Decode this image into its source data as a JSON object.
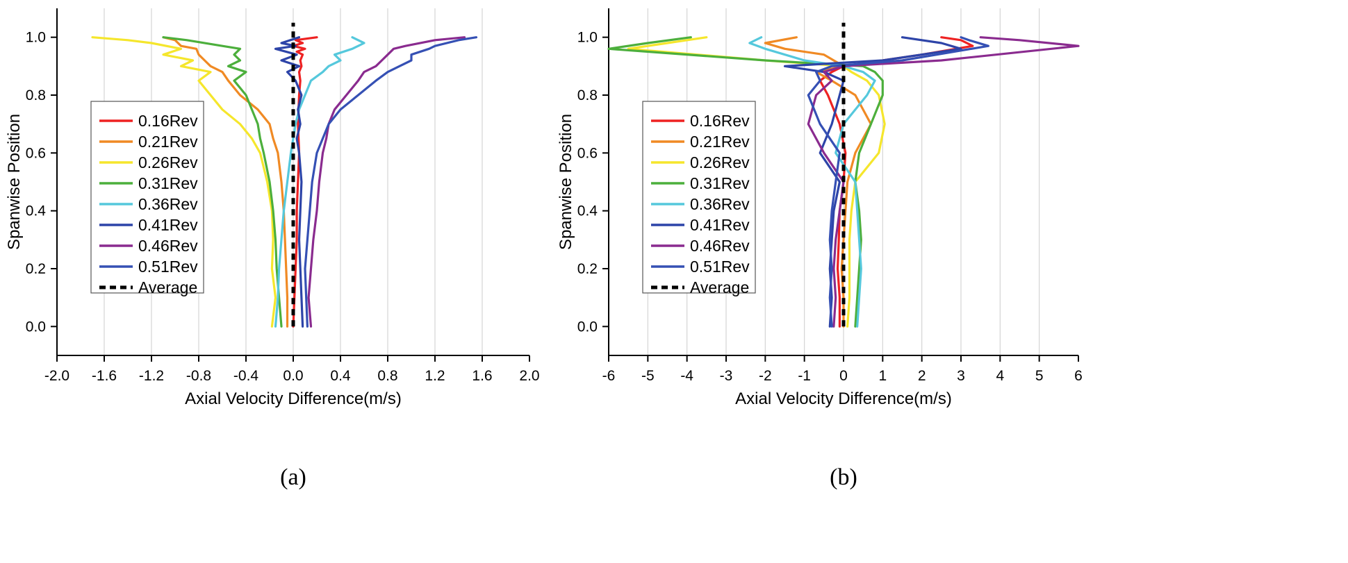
{
  "chart_data": [
    {
      "type": "line",
      "panel": "a",
      "caption": "(a)",
      "xlabel": "Axial Velocity Difference(m/s)",
      "ylabel": "Spanwise Position",
      "xlim": [
        -2.0,
        2.0
      ],
      "ylim": [
        -0.1,
        1.1
      ],
      "xticks": [
        -2.0,
        -1.6,
        -1.2,
        -0.8,
        -0.4,
        0.0,
        0.4,
        0.8,
        1.2,
        1.6,
        2.0
      ],
      "xtick_labels": [
        "-2.0",
        "-1.6",
        "-1.2",
        "-0.8",
        "-0.4",
        "0.0",
        "0.4",
        "0.8",
        "1.2",
        "1.6",
        "2.0"
      ],
      "yticks": [
        0.0,
        0.2,
        0.4,
        0.6,
        0.8,
        1.0
      ],
      "ytick_labels": [
        "0.0",
        "0.2",
        "0.4",
        "0.6",
        "0.8",
        "1.0"
      ],
      "grid": "vertical",
      "legend_position": "left",
      "series": [
        {
          "name": "0.16Rev",
          "color": "#ee2222",
          "dashed": false,
          "x": [
            0.0,
            0.01,
            0.02,
            0.03,
            0.03,
            0.04,
            0.05,
            0.04,
            0.05,
            0.06,
            0.05,
            0.07,
            0.06,
            0.08,
            0.03,
            0.1,
            0.0,
            0.08,
            0.02,
            0.2
          ],
          "y": [
            0.0,
            0.1,
            0.2,
            0.3,
            0.4,
            0.5,
            0.6,
            0.7,
            0.8,
            0.85,
            0.88,
            0.9,
            0.92,
            0.94,
            0.95,
            0.96,
            0.97,
            0.98,
            0.99,
            1.0
          ]
        },
        {
          "name": "0.21Rev",
          "color": "#f08a24",
          "dashed": false,
          "x": [
            -0.05,
            -0.05,
            -0.06,
            -0.07,
            -0.08,
            -0.1,
            -0.13,
            -0.17,
            -0.2,
            -0.3,
            -0.45,
            -0.55,
            -0.6,
            -0.7,
            -0.75,
            -0.8,
            -0.82,
            -0.95,
            -1.0,
            -1.1
          ],
          "y": [
            0.0,
            0.1,
            0.2,
            0.3,
            0.4,
            0.5,
            0.6,
            0.65,
            0.7,
            0.75,
            0.8,
            0.85,
            0.88,
            0.9,
            0.92,
            0.94,
            0.96,
            0.97,
            0.99,
            1.0
          ]
        },
        {
          "name": "0.26Rev",
          "color": "#f5e62c",
          "dashed": false,
          "x": [
            -0.18,
            -0.15,
            -0.18,
            -0.17,
            -0.18,
            -0.22,
            -0.28,
            -0.35,
            -0.45,
            -0.6,
            -0.7,
            -0.8,
            -0.7,
            -0.95,
            -0.85,
            -1.1,
            -0.95,
            -1.2,
            -1.4,
            -1.7
          ],
          "y": [
            0.0,
            0.1,
            0.2,
            0.3,
            0.4,
            0.5,
            0.6,
            0.65,
            0.7,
            0.75,
            0.8,
            0.85,
            0.88,
            0.9,
            0.92,
            0.94,
            0.96,
            0.98,
            0.99,
            1.0
          ]
        },
        {
          "name": "0.31Rev",
          "color": "#4caf3c",
          "dashed": false,
          "x": [
            -0.1,
            -0.12,
            -0.14,
            -0.15,
            -0.17,
            -0.2,
            -0.25,
            -0.28,
            -0.3,
            -0.35,
            -0.4,
            -0.5,
            -0.4,
            -0.55,
            -0.45,
            -0.5,
            -0.45,
            -0.6,
            -0.9,
            -1.1
          ],
          "y": [
            0.0,
            0.1,
            0.2,
            0.3,
            0.4,
            0.5,
            0.6,
            0.65,
            0.7,
            0.75,
            0.8,
            0.85,
            0.88,
            0.9,
            0.92,
            0.94,
            0.96,
            0.97,
            0.99,
            1.0
          ]
        },
        {
          "name": "0.36Rev",
          "color": "#55c8dc",
          "dashed": false,
          "x": [
            -0.15,
            -0.13,
            -0.12,
            -0.1,
            -0.08,
            -0.05,
            -0.02,
            0.0,
            0.02,
            0.05,
            0.1,
            0.15,
            0.25,
            0.3,
            0.4,
            0.35,
            0.5,
            0.55,
            0.6,
            0.5
          ],
          "y": [
            0.0,
            0.1,
            0.2,
            0.3,
            0.4,
            0.5,
            0.6,
            0.65,
            0.7,
            0.75,
            0.8,
            0.85,
            0.88,
            0.9,
            0.92,
            0.94,
            0.96,
            0.97,
            0.98,
            1.0
          ]
        },
        {
          "name": "0.41Rev",
          "color": "#2d44a8",
          "dashed": false,
          "x": [
            0.08,
            0.07,
            0.06,
            0.05,
            0.06,
            0.07,
            0.05,
            0.03,
            0.06,
            0.04,
            0.07,
            0.02,
            -0.05,
            0.05,
            -0.1,
            0.03,
            -0.15,
            0.02,
            -0.1,
            0.05
          ],
          "y": [
            0.0,
            0.1,
            0.2,
            0.3,
            0.4,
            0.5,
            0.6,
            0.65,
            0.7,
            0.75,
            0.8,
            0.85,
            0.88,
            0.9,
            0.92,
            0.94,
            0.96,
            0.97,
            0.98,
            1.0
          ]
        },
        {
          "name": "0.46Rev",
          "color": "#8a2b8f",
          "dashed": false,
          "x": [
            0.15,
            0.13,
            0.15,
            0.17,
            0.2,
            0.22,
            0.25,
            0.28,
            0.3,
            0.35,
            0.45,
            0.55,
            0.6,
            0.7,
            0.75,
            0.8,
            0.85,
            0.95,
            1.2,
            1.45
          ],
          "y": [
            0.0,
            0.1,
            0.2,
            0.3,
            0.4,
            0.5,
            0.6,
            0.65,
            0.7,
            0.75,
            0.8,
            0.85,
            0.88,
            0.9,
            0.92,
            0.94,
            0.96,
            0.97,
            0.99,
            1.0
          ]
        },
        {
          "name": "0.51Rev",
          "color": "#3550b4",
          "dashed": false,
          "x": [
            0.12,
            0.11,
            0.1,
            0.12,
            0.14,
            0.16,
            0.2,
            0.25,
            0.3,
            0.4,
            0.55,
            0.7,
            0.8,
            0.9,
            1.0,
            1.0,
            1.15,
            1.2,
            1.4,
            1.55
          ],
          "y": [
            0.0,
            0.1,
            0.2,
            0.3,
            0.4,
            0.5,
            0.6,
            0.65,
            0.7,
            0.75,
            0.8,
            0.85,
            0.88,
            0.9,
            0.92,
            0.94,
            0.96,
            0.97,
            0.99,
            1.0
          ]
        },
        {
          "name": "Average",
          "color": "#000000",
          "dashed": true,
          "x": [
            0.0,
            0.0
          ],
          "y": [
            0.0,
            1.05
          ]
        }
      ]
    },
    {
      "type": "line",
      "panel": "b",
      "caption": "(b)",
      "xlabel": "Axial Velocity Difference(m/s)",
      "ylabel": "Spanwise Position",
      "xlim": [
        -6,
        6
      ],
      "ylim": [
        -0.1,
        1.1
      ],
      "xticks": [
        -6,
        -5,
        -4,
        -3,
        -2,
        -1,
        0,
        1,
        2,
        3,
        4,
        5,
        6
      ],
      "xtick_labels": [
        "-6",
        "-5",
        "-4",
        "-3",
        "-2",
        "-1",
        "0",
        "1",
        "2",
        "3",
        "4",
        "5",
        "6"
      ],
      "yticks": [
        0.0,
        0.2,
        0.4,
        0.6,
        0.8,
        1.0
      ],
      "ytick_labels": [
        "0.0",
        "0.2",
        "0.4",
        "0.6",
        "0.8",
        "1.0"
      ],
      "grid": "vertical",
      "legend_position": "left",
      "series": [
        {
          "name": "0.16Rev",
          "color": "#ee2222",
          "dashed": false,
          "x": [
            -0.1,
            -0.1,
            -0.15,
            -0.12,
            -0.1,
            0.0,
            0.05,
            -0.1,
            -0.4,
            -0.6,
            -0.3,
            0.0,
            2.0,
            3.3,
            3.0,
            2.5
          ],
          "y": [
            0.0,
            0.1,
            0.2,
            0.3,
            0.4,
            0.5,
            0.6,
            0.7,
            0.8,
            0.85,
            0.88,
            0.9,
            0.94,
            0.97,
            0.99,
            1.0
          ]
        },
        {
          "name": "0.21Rev",
          "color": "#f08a24",
          "dashed": false,
          "x": [
            0.0,
            0.0,
            -0.05,
            0.0,
            0.05,
            0.1,
            0.3,
            0.7,
            0.3,
            -0.3,
            -0.7,
            0.0,
            -0.5,
            -1.5,
            -2.0,
            -1.2
          ],
          "y": [
            0.0,
            0.1,
            0.2,
            0.3,
            0.4,
            0.5,
            0.6,
            0.7,
            0.8,
            0.85,
            0.88,
            0.9,
            0.94,
            0.96,
            0.98,
            1.0
          ]
        },
        {
          "name": "0.26Rev",
          "color": "#f5e62c",
          "dashed": false,
          "x": [
            0.1,
            0.15,
            0.15,
            0.15,
            0.2,
            0.3,
            0.9,
            1.05,
            0.9,
            0.6,
            0.2,
            0.0,
            -2.0,
            -5.5,
            -4.5,
            -3.5
          ],
          "y": [
            0.0,
            0.1,
            0.2,
            0.3,
            0.4,
            0.5,
            0.6,
            0.7,
            0.8,
            0.85,
            0.88,
            0.9,
            0.92,
            0.96,
            0.98,
            1.0
          ]
        },
        {
          "name": "0.31Rev",
          "color": "#4caf3c",
          "dashed": false,
          "x": [
            0.3,
            0.35,
            0.4,
            0.45,
            0.4,
            0.3,
            0.4,
            0.7,
            1.0,
            1.0,
            0.8,
            0.5,
            -2.0,
            -6.0,
            -5.0,
            -3.9
          ],
          "y": [
            0.0,
            0.1,
            0.2,
            0.3,
            0.4,
            0.5,
            0.6,
            0.7,
            0.8,
            0.85,
            0.88,
            0.9,
            0.92,
            0.96,
            0.98,
            1.0
          ]
        },
        {
          "name": "0.36Rev",
          "color": "#55c8dc",
          "dashed": false,
          "x": [
            0.35,
            0.4,
            0.45,
            0.4,
            0.35,
            0.3,
            -0.2,
            0.0,
            0.6,
            0.8,
            0.5,
            0.0,
            -1.0,
            -2.0,
            -2.4,
            -2.1
          ],
          "y": [
            0.0,
            0.1,
            0.2,
            0.3,
            0.4,
            0.5,
            0.6,
            0.7,
            0.8,
            0.85,
            0.88,
            0.9,
            0.92,
            0.96,
            0.98,
            1.0
          ]
        },
        {
          "name": "0.41Rev",
          "color": "#2d44a8",
          "dashed": false,
          "x": [
            -0.35,
            -0.3,
            -0.35,
            -0.3,
            -0.25,
            -0.1,
            -0.6,
            -0.3,
            -0.1,
            0.0,
            -0.5,
            -1.5,
            1.0,
            3.0,
            2.5,
            1.5
          ],
          "y": [
            0.0,
            0.1,
            0.2,
            0.3,
            0.4,
            0.5,
            0.6,
            0.7,
            0.8,
            0.85,
            0.88,
            0.9,
            0.92,
            0.96,
            0.98,
            1.0
          ]
        },
        {
          "name": "0.46Rev",
          "color": "#8a2b8f",
          "dashed": false,
          "x": [
            -0.25,
            -0.2,
            -0.25,
            -0.2,
            -0.1,
            0.0,
            -0.5,
            -0.9,
            -0.7,
            -0.3,
            -0.5,
            0.0,
            2.5,
            6.0,
            4.5,
            3.5
          ],
          "y": [
            0.0,
            0.1,
            0.2,
            0.3,
            0.4,
            0.5,
            0.6,
            0.7,
            0.8,
            0.85,
            0.88,
            0.9,
            0.92,
            0.97,
            0.99,
            1.0
          ]
        },
        {
          "name": "0.51Rev",
          "color": "#3550b4",
          "dashed": false,
          "x": [
            -0.3,
            -0.35,
            -0.3,
            -0.35,
            -0.3,
            -0.2,
            -0.1,
            -0.6,
            -0.9,
            -0.6,
            -0.7,
            -0.3,
            1.5,
            3.7,
            3.2,
            3.0
          ],
          "y": [
            0.0,
            0.1,
            0.2,
            0.3,
            0.4,
            0.5,
            0.6,
            0.7,
            0.8,
            0.85,
            0.88,
            0.9,
            0.92,
            0.97,
            0.99,
            1.0
          ]
        },
        {
          "name": "Average",
          "color": "#000000",
          "dashed": true,
          "x": [
            0.0,
            0.0
          ],
          "y": [
            0.0,
            1.05
          ]
        }
      ]
    }
  ]
}
